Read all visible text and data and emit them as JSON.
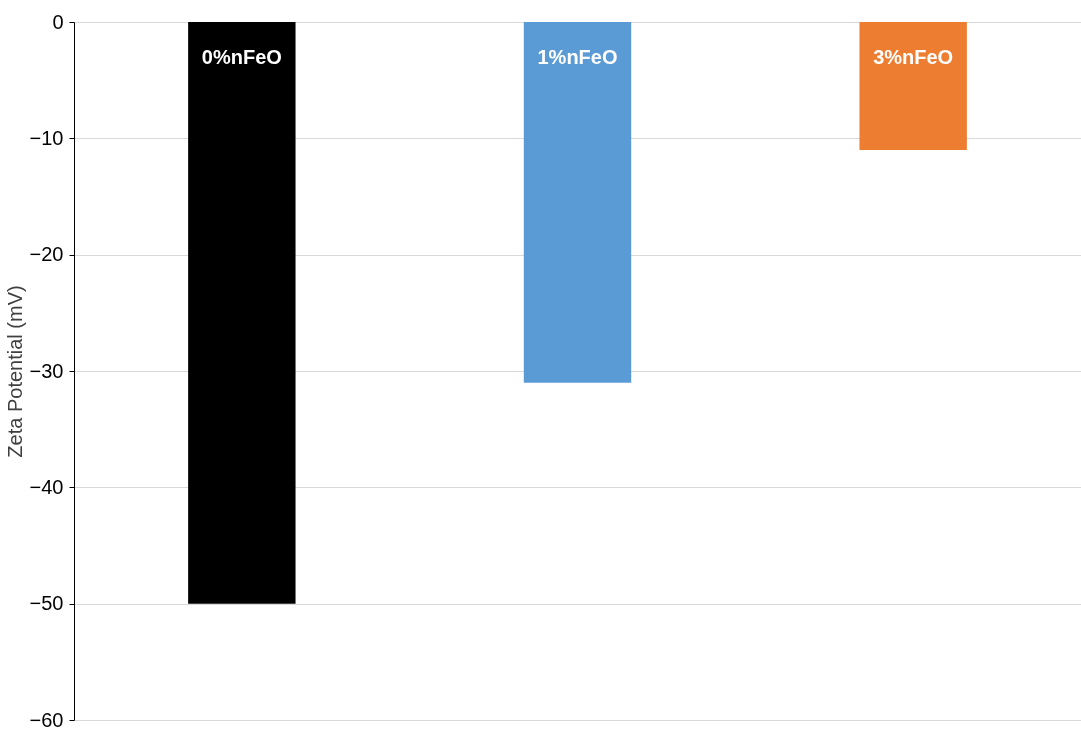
{
  "chart_data": {
    "type": "bar",
    "ylabel": "Zeta Potential (mV)",
    "categories": [
      "0%nFeO",
      "1%nFeO",
      "3%nFeO"
    ],
    "values": [
      -50,
      -31,
      -11
    ],
    "colors": [
      "#000000",
      "#5b9bd5",
      "#ed7d31"
    ],
    "ylim": [
      -60,
      0
    ],
    "yticks": [
      0,
      -10,
      -20,
      -30,
      -40,
      -50,
      -60
    ],
    "grid": "y"
  }
}
